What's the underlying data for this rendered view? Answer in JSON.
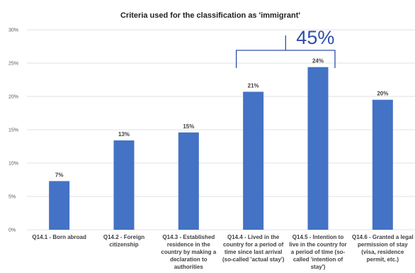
{
  "chart_data": {
    "type": "bar",
    "title": "Criteria used for the classification as 'immigrant'",
    "xlabel": "",
    "ylabel": "",
    "ylim": [
      0,
      30
    ],
    "y_ticks": [
      "0%",
      "5%",
      "10%",
      "15%",
      "20%",
      "25%",
      "30%"
    ],
    "grid": true,
    "legend": "none",
    "categories": [
      "Q14.1 - Born abroad",
      "Q14.2 - Foreign citizenship",
      "Q14.3 - Established residence in the country by making a declaration to authorities",
      "Q14.4 - Lived in the country for a period of time since last arrival (so-called 'actual stay')",
      "Q14.5 - Intention to live in the country for a period of time (so-called 'intention of stay')",
      "Q14.6 - Granted a legal permission of stay (visa, residence permit, etc.)"
    ],
    "category_lines": [
      [
        "Q14.1 - Born abroad"
      ],
      [
        "Q14.2 - Foreign",
        "citizenship"
      ],
      [
        "Q14.3 - Established",
        "residence in the",
        "country by making a",
        "declaration to",
        "authorities"
      ],
      [
        "Q14.4 - Lived in the",
        "country for a period of",
        "time since last arrival",
        "(so-called 'actual stay')"
      ],
      [
        "Q14.5 - Intention to",
        "live in the country for",
        "a period of time (so-",
        "called 'intention of",
        "stay')"
      ],
      [
        "Q14.6 - Granted a legal",
        "permission of stay",
        "(visa, residence",
        "permit, etc.)"
      ]
    ],
    "values": [
      7.3,
      13.4,
      14.6,
      20.7,
      24.4,
      19.5
    ],
    "data_labels": [
      "7%",
      "13%",
      "15%",
      "21%",
      "24%",
      "20%"
    ],
    "bar_color": "#4472C4",
    "annotation": {
      "text": "45%",
      "spans": [
        "Q14.4",
        "Q14.5"
      ],
      "color": "#2E4EAA"
    }
  }
}
